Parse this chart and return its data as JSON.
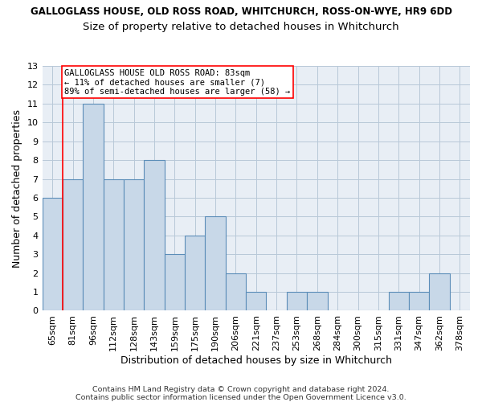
{
  "title1": "GALLOGLASS HOUSE, OLD ROSS ROAD, WHITCHURCH, ROSS-ON-WYE, HR9 6DD",
  "title2": "Size of property relative to detached houses in Whitchurch",
  "xlabel": "Distribution of detached houses by size in Whitchurch",
  "ylabel": "Number of detached properties",
  "categories": [
    "65sqm",
    "81sqm",
    "96sqm",
    "112sqm",
    "128sqm",
    "143sqm",
    "159sqm",
    "175sqm",
    "190sqm",
    "206sqm",
    "221sqm",
    "237sqm",
    "253sqm",
    "268sqm",
    "284sqm",
    "300sqm",
    "315sqm",
    "331sqm",
    "347sqm",
    "362sqm",
    "378sqm"
  ],
  "values": [
    6,
    7,
    11,
    7,
    7,
    8,
    3,
    4,
    5,
    2,
    1,
    0,
    1,
    1,
    0,
    0,
    0,
    1,
    1,
    2,
    0
  ],
  "bar_color": "#c8d8e8",
  "bar_edge_color": "#5b8db8",
  "ylim": [
    0,
    13
  ],
  "yticks": [
    0,
    1,
    2,
    3,
    4,
    5,
    6,
    7,
    8,
    9,
    10,
    11,
    12,
    13
  ],
  "red_line_index": 1,
  "annotation_line1": "GALLOGLASS HOUSE OLD ROSS ROAD: 83sqm",
  "annotation_line2": "← 11% of detached houses are smaller (7)",
  "annotation_line3": "89% of semi-detached houses are larger (58) →",
  "footnote1": "Contains HM Land Registry data © Crown copyright and database right 2024.",
  "footnote2": "Contains public sector information licensed under the Open Government Licence v3.0.",
  "background_color": "#ffffff",
  "plot_bg_color": "#e8eef5",
  "grid_color": "#b8c8d8",
  "title1_fontsize": 8.5,
  "title2_fontsize": 9.5,
  "ylabel_fontsize": 9,
  "xlabel_fontsize": 9,
  "tick_fontsize": 8,
  "annot_fontsize": 7.5,
  "footnote_fontsize": 6.8
}
